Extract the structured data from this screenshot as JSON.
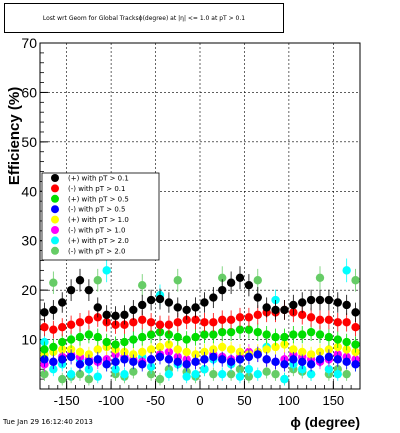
{
  "chart_data": {
    "type": "scatter",
    "title": "Lost wrt Geom for Global Tracksϕ(degree) at |η| <= 1.0 at pT > 0.1",
    "xlabel": "ϕ (degree)",
    "ylabel": "Efficiency (%)",
    "xlim": [
      -180,
      180
    ],
    "ylim": [
      0,
      70
    ],
    "x_ticks": [
      "-150",
      "-100",
      "-50",
      "0",
      "50",
      "100",
      "150"
    ],
    "y_ticks": [
      "10",
      "20",
      "30",
      "40",
      "50",
      "60",
      "70"
    ],
    "grid": true,
    "legend_position": "left-middle",
    "series": [
      {
        "name": "(+) with pT > 0.1",
        "color": "#000000",
        "x": [
          -175,
          -165,
          -155,
          -145,
          -135,
          -125,
          -115,
          -105,
          -95,
          -85,
          -75,
          -65,
          -55,
          -45,
          -35,
          -25,
          -15,
          -5,
          5,
          15,
          25,
          35,
          45,
          55,
          65,
          75,
          85,
          95,
          105,
          115,
          125,
          135,
          145,
          155,
          165,
          175
        ],
        "y": [
          15.5,
          16,
          17.5,
          20,
          22,
          20,
          16.5,
          15,
          14.8,
          15,
          16,
          17,
          18,
          18.2,
          17.5,
          16.5,
          16,
          16.5,
          17.5,
          18.5,
          20,
          21.5,
          22.5,
          21,
          18.5,
          16.5,
          16,
          16,
          17,
          17.5,
          18,
          18,
          18,
          17.5,
          17,
          15.5
        ]
      },
      {
        "name": "(-) with pT > 0.1",
        "color": "#ff0000",
        "x": [
          -175,
          -165,
          -155,
          -145,
          -135,
          -125,
          -115,
          -105,
          -95,
          -85,
          -75,
          -65,
          -55,
          -45,
          -35,
          -25,
          -15,
          -5,
          5,
          15,
          25,
          35,
          45,
          55,
          65,
          75,
          85,
          95,
          105,
          115,
          125,
          135,
          145,
          155,
          165,
          175
        ],
        "y": [
          12.5,
          12,
          12.5,
          13,
          13.5,
          14,
          14.5,
          13.5,
          13,
          13,
          13.5,
          14,
          13.5,
          13,
          13,
          13.5,
          14,
          14,
          13.5,
          13.5,
          14,
          14,
          14.5,
          14.5,
          15,
          15.5,
          15.5,
          16,
          15.5,
          15,
          14.5,
          14,
          14,
          13.5,
          13.5,
          12.5
        ]
      },
      {
        "name": "(+) with pT > 0.5",
        "color": "#00dd00",
        "x": [
          -175,
          -165,
          -155,
          -145,
          -135,
          -125,
          -115,
          -105,
          -95,
          -85,
          -75,
          -65,
          -55,
          -45,
          -35,
          -25,
          -15,
          -5,
          5,
          15,
          25,
          35,
          45,
          55,
          65,
          75,
          85,
          95,
          105,
          115,
          125,
          135,
          145,
          155,
          165,
          175
        ],
        "y": [
          8,
          8.5,
          9.5,
          10,
          10.5,
          11,
          10.5,
          9.5,
          9,
          9.5,
          10,
          10.5,
          11,
          11.5,
          11,
          10.5,
          10,
          10.5,
          11,
          11,
          11.5,
          11.5,
          12,
          12,
          11.5,
          11,
          10.5,
          10.5,
          11,
          11,
          11.5,
          11,
          10.5,
          10,
          9.5,
          9
        ]
      },
      {
        "name": "(-) with pT > 0.5",
        "color": "#0000ff",
        "x": [
          -175,
          -165,
          -155,
          -145,
          -135,
          -125,
          -115,
          -105,
          -95,
          -85,
          -75,
          -65,
          -55,
          -45,
          -35,
          -25,
          -15,
          -5,
          5,
          15,
          25,
          35,
          45,
          55,
          65,
          75,
          85,
          95,
          105,
          115,
          125,
          135,
          145,
          155,
          165,
          175
        ],
        "y": [
          6,
          5.5,
          6,
          6.5,
          5,
          5.5,
          6,
          5,
          5.5,
          6,
          5.5,
          5,
          6,
          6.5,
          6,
          5.5,
          5,
          5.5,
          6,
          6.5,
          6,
          5.5,
          6,
          6.5,
          7,
          6,
          5.5,
          5,
          6,
          5.5,
          5,
          6,
          6.5,
          6,
          5.5,
          5
        ]
      },
      {
        "name": "(+) with pT > 1.0",
        "color": "#ffff00",
        "x": [
          -175,
          -165,
          -155,
          -145,
          -135,
          -125,
          -115,
          -105,
          -95,
          -85,
          -75,
          -65,
          -55,
          -45,
          -35,
          -25,
          -15,
          -5,
          5,
          15,
          25,
          35,
          45,
          55,
          65,
          75,
          85,
          95,
          105,
          115,
          125,
          135,
          145,
          155,
          165,
          175
        ],
        "y": [
          7,
          7.5,
          8,
          8,
          7.5,
          7,
          8,
          8.5,
          8,
          7.5,
          7,
          7.5,
          8,
          8.5,
          9,
          8,
          7.5,
          7,
          7.5,
          8,
          8.5,
          8,
          7.5,
          7,
          7.5,
          8,
          8.5,
          9,
          8,
          7.5,
          7,
          7.5,
          8,
          8.5,
          8,
          7.5
        ]
      },
      {
        "name": "(-) with pT > 1.0",
        "color": "#ff00ff",
        "x": [
          -175,
          -165,
          -155,
          -145,
          -135,
          -125,
          -115,
          -105,
          -95,
          -85,
          -75,
          -65,
          -55,
          -45,
          -35,
          -25,
          -15,
          -5,
          5,
          15,
          25,
          35,
          45,
          55,
          65,
          75,
          85,
          95,
          105,
          115,
          125,
          135,
          145,
          155,
          165,
          175
        ],
        "y": [
          5,
          5.5,
          6.5,
          7,
          6.5,
          6,
          5.5,
          6,
          7,
          6.5,
          6,
          5.5,
          6,
          7,
          7.5,
          6.5,
          6,
          5.5,
          6,
          7,
          6.5,
          6,
          6.5,
          7.5,
          7,
          6,
          5.5,
          6,
          7,
          6.5,
          6,
          5.5,
          6,
          7,
          6.5,
          6
        ]
      },
      {
        "name": "(+) with pT > 2.0",
        "color": "#00ffff",
        "x": [
          -175,
          -165,
          -155,
          -145,
          -135,
          -125,
          -115,
          -105,
          -95,
          -85,
          -75,
          -65,
          -55,
          -45,
          -35,
          -25,
          -15,
          -5,
          5,
          15,
          25,
          35,
          45,
          55,
          65,
          75,
          85,
          95,
          105,
          115,
          125,
          135,
          145,
          155,
          165,
          175
        ],
        "y": [
          9.5,
          4,
          5,
          3,
          6,
          4,
          2.5,
          24,
          4,
          3,
          10,
          6.5,
          4.5,
          19,
          3,
          5,
          2.5,
          3,
          4,
          6,
          3,
          5,
          2.5,
          4,
          3,
          8.5,
          18,
          2,
          5,
          4,
          3,
          6,
          4,
          3,
          24,
          5
        ]
      },
      {
        "name": "(-) with pT > 2.0",
        "color": "#66cc66",
        "x": [
          -175,
          -165,
          -155,
          -145,
          -135,
          -125,
          -115,
          -105,
          -95,
          -85,
          -75,
          -65,
          -55,
          -45,
          -35,
          -25,
          -15,
          -5,
          5,
          15,
          25,
          35,
          45,
          55,
          65,
          75,
          85,
          95,
          105,
          115,
          125,
          135,
          145,
          155,
          165,
          175
        ],
        "y": [
          3,
          21.5,
          2,
          2.5,
          3,
          2,
          22,
          5,
          3,
          2.5,
          3.5,
          21,
          3,
          2,
          4,
          22,
          3.5,
          2.5,
          4,
          3,
          22.5,
          3,
          4,
          2.5,
          22,
          3.5,
          3,
          2,
          4,
          3.5,
          3,
          22.5,
          3,
          4,
          3,
          22
        ]
      }
    ]
  },
  "footer": {
    "timestamp": "Tue Jan 29 16:12:40 2013"
  }
}
